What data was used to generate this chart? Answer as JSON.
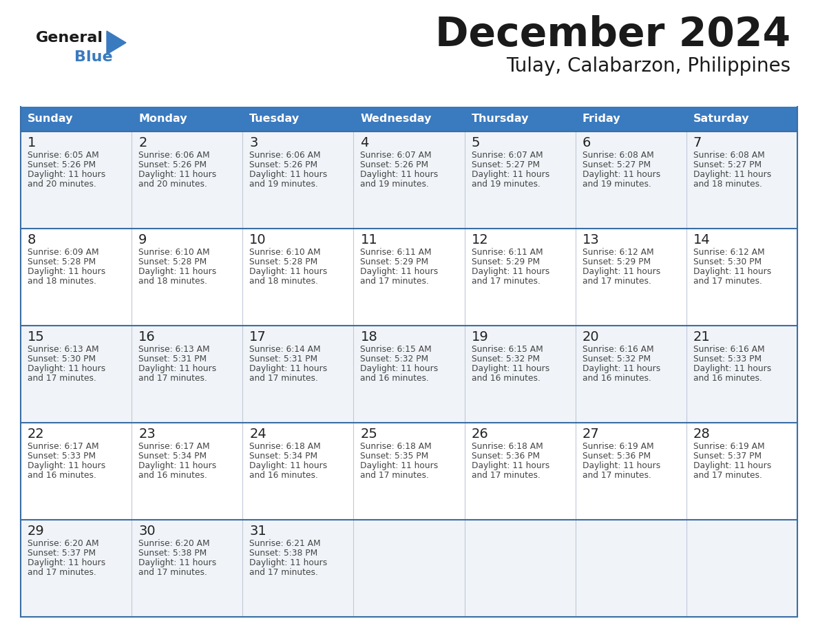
{
  "title": "December 2024",
  "subtitle": "Tulay, Calabarzon, Philippines",
  "header_color": "#3a7abf",
  "header_text_color": "#ffffff",
  "cell_bg_even": "#f0f4f8",
  "cell_bg_odd": "#ffffff",
  "border_color": "#3a6ea5",
  "sep_color": "#c0c8d8",
  "text_color": "#333333",
  "days_of_week": [
    "Sunday",
    "Monday",
    "Tuesday",
    "Wednesday",
    "Thursday",
    "Friday",
    "Saturday"
  ],
  "weeks": [
    [
      {
        "day": 1,
        "sunrise": "6:05 AM",
        "sunset": "5:26 PM",
        "dl1": "11 hours",
        "dl2": "and 20 minutes."
      },
      {
        "day": 2,
        "sunrise": "6:06 AM",
        "sunset": "5:26 PM",
        "dl1": "11 hours",
        "dl2": "and 20 minutes."
      },
      {
        "day": 3,
        "sunrise": "6:06 AM",
        "sunset": "5:26 PM",
        "dl1": "11 hours",
        "dl2": "and 19 minutes."
      },
      {
        "day": 4,
        "sunrise": "6:07 AM",
        "sunset": "5:26 PM",
        "dl1": "11 hours",
        "dl2": "and 19 minutes."
      },
      {
        "day": 5,
        "sunrise": "6:07 AM",
        "sunset": "5:27 PM",
        "dl1": "11 hours",
        "dl2": "and 19 minutes."
      },
      {
        "day": 6,
        "sunrise": "6:08 AM",
        "sunset": "5:27 PM",
        "dl1": "11 hours",
        "dl2": "and 19 minutes."
      },
      {
        "day": 7,
        "sunrise": "6:08 AM",
        "sunset": "5:27 PM",
        "dl1": "11 hours",
        "dl2": "and 18 minutes."
      }
    ],
    [
      {
        "day": 8,
        "sunrise": "6:09 AM",
        "sunset": "5:28 PM",
        "dl1": "11 hours",
        "dl2": "and 18 minutes."
      },
      {
        "day": 9,
        "sunrise": "6:10 AM",
        "sunset": "5:28 PM",
        "dl1": "11 hours",
        "dl2": "and 18 minutes."
      },
      {
        "day": 10,
        "sunrise": "6:10 AM",
        "sunset": "5:28 PM",
        "dl1": "11 hours",
        "dl2": "and 18 minutes."
      },
      {
        "day": 11,
        "sunrise": "6:11 AM",
        "sunset": "5:29 PM",
        "dl1": "11 hours",
        "dl2": "and 17 minutes."
      },
      {
        "day": 12,
        "sunrise": "6:11 AM",
        "sunset": "5:29 PM",
        "dl1": "11 hours",
        "dl2": "and 17 minutes."
      },
      {
        "day": 13,
        "sunrise": "6:12 AM",
        "sunset": "5:29 PM",
        "dl1": "11 hours",
        "dl2": "and 17 minutes."
      },
      {
        "day": 14,
        "sunrise": "6:12 AM",
        "sunset": "5:30 PM",
        "dl1": "11 hours",
        "dl2": "and 17 minutes."
      }
    ],
    [
      {
        "day": 15,
        "sunrise": "6:13 AM",
        "sunset": "5:30 PM",
        "dl1": "11 hours",
        "dl2": "and 17 minutes."
      },
      {
        "day": 16,
        "sunrise": "6:13 AM",
        "sunset": "5:31 PM",
        "dl1": "11 hours",
        "dl2": "and 17 minutes."
      },
      {
        "day": 17,
        "sunrise": "6:14 AM",
        "sunset": "5:31 PM",
        "dl1": "11 hours",
        "dl2": "and 17 minutes."
      },
      {
        "day": 18,
        "sunrise": "6:15 AM",
        "sunset": "5:32 PM",
        "dl1": "11 hours",
        "dl2": "and 16 minutes."
      },
      {
        "day": 19,
        "sunrise": "6:15 AM",
        "sunset": "5:32 PM",
        "dl1": "11 hours",
        "dl2": "and 16 minutes."
      },
      {
        "day": 20,
        "sunrise": "6:16 AM",
        "sunset": "5:32 PM",
        "dl1": "11 hours",
        "dl2": "and 16 minutes."
      },
      {
        "day": 21,
        "sunrise": "6:16 AM",
        "sunset": "5:33 PM",
        "dl1": "11 hours",
        "dl2": "and 16 minutes."
      }
    ],
    [
      {
        "day": 22,
        "sunrise": "6:17 AM",
        "sunset": "5:33 PM",
        "dl1": "11 hours",
        "dl2": "and 16 minutes."
      },
      {
        "day": 23,
        "sunrise": "6:17 AM",
        "sunset": "5:34 PM",
        "dl1": "11 hours",
        "dl2": "and 16 minutes."
      },
      {
        "day": 24,
        "sunrise": "6:18 AM",
        "sunset": "5:34 PM",
        "dl1": "11 hours",
        "dl2": "and 16 minutes."
      },
      {
        "day": 25,
        "sunrise": "6:18 AM",
        "sunset": "5:35 PM",
        "dl1": "11 hours",
        "dl2": "and 17 minutes."
      },
      {
        "day": 26,
        "sunrise": "6:18 AM",
        "sunset": "5:36 PM",
        "dl1": "11 hours",
        "dl2": "and 17 minutes."
      },
      {
        "day": 27,
        "sunrise": "6:19 AM",
        "sunset": "5:36 PM",
        "dl1": "11 hours",
        "dl2": "and 17 minutes."
      },
      {
        "day": 28,
        "sunrise": "6:19 AM",
        "sunset": "5:37 PM",
        "dl1": "11 hours",
        "dl2": "and 17 minutes."
      }
    ],
    [
      {
        "day": 29,
        "sunrise": "6:20 AM",
        "sunset": "5:37 PM",
        "dl1": "11 hours",
        "dl2": "and 17 minutes."
      },
      {
        "day": 30,
        "sunrise": "6:20 AM",
        "sunset": "5:38 PM",
        "dl1": "11 hours",
        "dl2": "and 17 minutes."
      },
      {
        "day": 31,
        "sunrise": "6:21 AM",
        "sunset": "5:38 PM",
        "dl1": "11 hours",
        "dl2": "and 17 minutes."
      },
      null,
      null,
      null,
      null
    ]
  ]
}
